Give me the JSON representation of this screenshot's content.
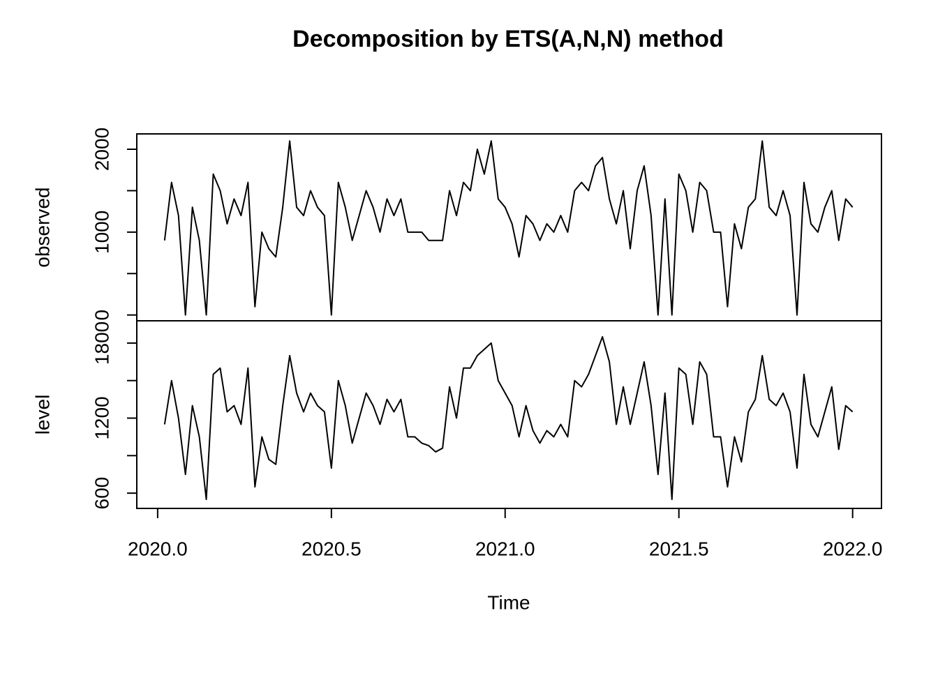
{
  "title": "Decomposition by ETS(A,N,N) method",
  "xlabel": "Time",
  "chart_data": [
    {
      "type": "line",
      "ylabel": "observed",
      "color": "#000000",
      "x": [
        2020.02,
        2020.04,
        2020.06,
        2020.08,
        2020.1,
        2020.12,
        2020.14,
        2020.16,
        2020.18,
        2020.2,
        2020.22,
        2020.24,
        2020.26,
        2020.28,
        2020.3,
        2020.32,
        2020.34,
        2020.36,
        2020.38,
        2020.4,
        2020.42,
        2020.44,
        2020.46,
        2020.48,
        2020.5,
        2020.52,
        2020.54,
        2020.56,
        2020.58,
        2020.6,
        2020.62,
        2020.64,
        2020.66,
        2020.68,
        2020.7,
        2020.72,
        2020.74,
        2020.76,
        2020.78,
        2020.8,
        2020.82,
        2020.84,
        2020.86,
        2020.88,
        2020.9,
        2020.92,
        2020.94,
        2020.96,
        2020.98,
        2021.0,
        2021.02,
        2021.04,
        2021.06,
        2021.08,
        2021.1,
        2021.12,
        2021.14,
        2021.16,
        2021.18,
        2021.2,
        2021.22,
        2021.24,
        2021.26,
        2021.28,
        2021.3,
        2021.32,
        2021.34,
        2021.36,
        2021.38,
        2021.4,
        2021.42,
        2021.44,
        2021.46,
        2021.48,
        2021.5,
        2021.52,
        2021.54,
        2021.56,
        2021.58,
        2021.6,
        2021.62,
        2021.64,
        2021.66,
        2021.68,
        2021.7,
        2021.72,
        2021.74,
        2021.76,
        2021.78,
        2021.8,
        2021.82,
        2021.84,
        2021.86,
        2021.88,
        2021.9,
        2021.92,
        2021.94,
        2021.96,
        2021.98,
        2022.0
      ],
      "values": [
        900,
        1600,
        1200,
        0,
        1300,
        900,
        0,
        1700,
        1500,
        1100,
        1400,
        1200,
        1600,
        100,
        1000,
        800,
        700,
        1300,
        2100,
        1300,
        1200,
        1500,
        1300,
        1200,
        0,
        1600,
        1300,
        900,
        1200,
        1500,
        1300,
        1000,
        1400,
        1200,
        1400,
        1000,
        1000,
        1000,
        900,
        900,
        900,
        1500,
        1200,
        1600,
        1500,
        2000,
        1700,
        2100,
        1400,
        1300,
        1100,
        700,
        1200,
        1100,
        900,
        1100,
        1000,
        1200,
        1000,
        1500,
        1600,
        1500,
        1800,
        1900,
        1400,
        1100,
        1500,
        800,
        1500,
        1800,
        1200,
        0,
        1400,
        0,
        1700,
        1500,
        1000,
        1600,
        1500,
        1000,
        1000,
        100,
        1100,
        800,
        1300,
        1400,
        2100,
        1300,
        1200,
        1500,
        1200,
        0,
        1600,
        1100,
        1000,
        1300,
        1500,
        900,
        1400,
        1300
      ],
      "xlim": [
        2019.94,
        2022.083
      ],
      "ylim": [
        -70,
        2185
      ],
      "yticks": [
        0,
        1000,
        2000
      ],
      "yticks_unlabeled": [
        500,
        1500
      ]
    },
    {
      "type": "line",
      "ylabel": "level",
      "color": "#000000",
      "x": [
        2020.02,
        2020.04,
        2020.06,
        2020.08,
        2020.1,
        2020.12,
        2020.14,
        2020.16,
        2020.18,
        2020.2,
        2020.22,
        2020.24,
        2020.26,
        2020.28,
        2020.3,
        2020.32,
        2020.34,
        2020.36,
        2020.38,
        2020.4,
        2020.42,
        2020.44,
        2020.46,
        2020.48,
        2020.5,
        2020.52,
        2020.54,
        2020.56,
        2020.58,
        2020.6,
        2020.62,
        2020.64,
        2020.66,
        2020.68,
        2020.7,
        2020.72,
        2020.74,
        2020.76,
        2020.78,
        2020.8,
        2020.82,
        2020.84,
        2020.86,
        2020.88,
        2020.9,
        2020.92,
        2020.94,
        2020.96,
        2020.98,
        2021.0,
        2021.02,
        2021.04,
        2021.06,
        2021.08,
        2021.1,
        2021.12,
        2021.14,
        2021.16,
        2021.18,
        2021.2,
        2021.22,
        2021.24,
        2021.26,
        2021.28,
        2021.3,
        2021.32,
        2021.34,
        2021.36,
        2021.38,
        2021.4,
        2021.42,
        2021.44,
        2021.46,
        2021.48,
        2021.5,
        2021.52,
        2021.54,
        2021.56,
        2021.58,
        2021.6,
        2021.62,
        2021.64,
        2021.66,
        2021.68,
        2021.7,
        2021.72,
        2021.74,
        2021.76,
        2021.78,
        2021.8,
        2021.82,
        2021.84,
        2021.86,
        2021.88,
        2021.9,
        2021.92,
        2021.94,
        2021.96,
        2021.98,
        2022.0
      ],
      "values": [
        1150,
        1500,
        1200,
        750,
        1300,
        1050,
        550,
        1550,
        1600,
        1250,
        1300,
        1150,
        1600,
        650,
        1050,
        870,
        830,
        1300,
        1700,
        1400,
        1250,
        1400,
        1300,
        1250,
        800,
        1500,
        1300,
        1000,
        1200,
        1400,
        1300,
        1150,
        1350,
        1250,
        1350,
        1050,
        1050,
        1000,
        980,
        930,
        960,
        1450,
        1200,
        1600,
        1600,
        1700,
        1750,
        1800,
        1500,
        1400,
        1300,
        1050,
        1300,
        1100,
        1000,
        1100,
        1050,
        1150,
        1050,
        1500,
        1450,
        1550,
        1700,
        1850,
        1650,
        1150,
        1450,
        1150,
        1400,
        1650,
        1300,
        750,
        1400,
        550,
        1600,
        1550,
        1150,
        1650,
        1550,
        1050,
        1050,
        650,
        1050,
        850,
        1250,
        1350,
        1700,
        1350,
        1300,
        1400,
        1250,
        800,
        1550,
        1150,
        1050,
        1250,
        1450,
        950,
        1300,
        1250
      ],
      "xlim": [
        2019.94,
        2022.083
      ],
      "ylim": [
        478,
        1978
      ],
      "yticks": [
        600,
        1200,
        1800
      ],
      "yticks_unlabeled": [
        900,
        1500
      ],
      "xticks": [
        {
          "value": 2020,
          "label": "2020.0"
        },
        2020.5,
        {
          "value": 2021,
          "label": "2021.0"
        },
        2021.5,
        {
          "value": 2022,
          "label": "2022.0"
        }
      ]
    }
  ]
}
